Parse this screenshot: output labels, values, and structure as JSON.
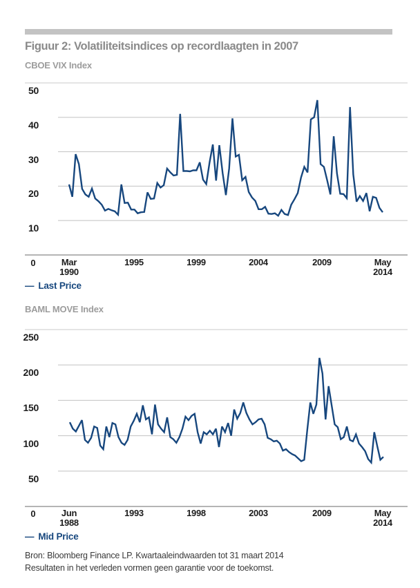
{
  "header": {
    "title": "Figuur 2: Volatiliteitsindices op recordlaagten in 2007"
  },
  "chart_data": [
    {
      "type": "line",
      "title": "CBOE VIX Index",
      "legend_marker": "—",
      "series": [
        {
          "name": "Last Price",
          "values": [
            20.5,
            16.9,
            29.3,
            26.4,
            19.2,
            17.6,
            16.9,
            19.3,
            16.4,
            15.6,
            14.6,
            12.9,
            13.4,
            13.0,
            12.7,
            11.7,
            20.5,
            15.1,
            15.2,
            13.2,
            13.2,
            12.1,
            12.4,
            12.5,
            18.2,
            16.3,
            16.4,
            20.9,
            19.6,
            20.3,
            25.1,
            24.0,
            23.1,
            23.3,
            41.0,
            24.4,
            24.4,
            24.3,
            24.6,
            24.6,
            26.9,
            21.9,
            20.6,
            26.9,
            32.1,
            21.6,
            31.9,
            23.8,
            17.4,
            25.1,
            39.7,
            28.6,
            29.1,
            21.7,
            22.7,
            18.3,
            16.7,
            15.7,
            13.3,
            13.3,
            14.0,
            12.0,
            11.9,
            12.1,
            11.4,
            13.1,
            11.9,
            11.6,
            14.6,
            16.2,
            18.0,
            22.5,
            25.6,
            24.0,
            39.4,
            40.0,
            45.0,
            26.4,
            25.6,
            21.7,
            17.6,
            34.5,
            23.7,
            17.8,
            17.7,
            16.5,
            43.0,
            23.4,
            15.5,
            17.1,
            15.7,
            18.0,
            12.7,
            16.9,
            16.6,
            13.7,
            12.4
          ]
        }
      ],
      "x_ticks": [
        [
          "Mar",
          "1990"
        ],
        [
          "1995"
        ],
        [
          "1999"
        ],
        [
          "2004"
        ],
        [
          "2009"
        ],
        [
          "May",
          "2014"
        ]
      ],
      "y_ticks": [
        50,
        40,
        30,
        20,
        10
      ],
      "origin_label": "0",
      "ylim": [
        0,
        50
      ],
      "x_start": "Mar 1990",
      "x_end": "May 2014",
      "grid": true,
      "legend_position": "bottom-left"
    },
    {
      "type": "line",
      "title": "BAML MOVE Index",
      "legend_marker": "—",
      "series": [
        {
          "name": "Mid Price",
          "values": [
            119,
            110,
            106,
            114,
            122,
            94,
            90,
            97,
            113,
            111,
            86,
            81,
            113,
            98,
            118,
            116,
            98,
            90,
            87,
            94,
            113,
            121,
            131,
            119,
            143,
            123,
            126,
            102,
            144,
            116,
            110,
            105,
            126,
            98,
            95,
            90,
            98,
            110,
            127,
            122,
            128,
            131,
            105,
            89,
            105,
            102,
            107,
            102,
            110,
            84,
            113,
            105,
            118,
            100,
            137,
            124,
            132,
            147,
            132,
            123,
            116,
            119,
            123,
            124,
            116,
            97,
            95,
            92,
            93,
            89,
            79,
            81,
            77,
            74,
            72,
            68,
            64,
            66,
            108,
            147,
            131,
            144,
            210,
            188,
            123,
            170,
            143,
            116,
            112,
            95,
            98,
            113,
            94,
            92,
            102,
            89,
            84,
            78,
            67,
            62,
            105,
            85,
            66,
            70
          ]
        }
      ],
      "x_ticks": [
        [
          "Jun",
          "1988"
        ],
        [
          "1993"
        ],
        [
          "1998"
        ],
        [
          "2003"
        ],
        [
          "2009"
        ],
        [
          "May",
          "2014"
        ]
      ],
      "y_ticks": [
        250,
        200,
        150,
        100,
        50
      ],
      "origin_label": "0",
      "ylim": [
        0,
        250
      ],
      "x_start": "Jun 1988",
      "x_end": "May 2014",
      "grid": true,
      "legend_position": "bottom-left"
    }
  ],
  "footer": {
    "line1": "Bron: Bloomberg Finance LP. Kwartaaleindwaarden tot 31 maart 2014",
    "line2": "Resultaten in het verleden vormen geen garantie voor de toekomst."
  },
  "colors": {
    "line": "#17477e",
    "legend_text": "#17477e",
    "gridline": "#c9c9c9",
    "axis_line": "#9c9c9c",
    "title_gray": "#8a8a8a",
    "subtitle_gray": "#9c9c9c",
    "tick_label": "#1c1c1c",
    "footer_text": "#3a3a3a",
    "top_bar": "#c3c3c3",
    "background": "#ffffff"
  }
}
